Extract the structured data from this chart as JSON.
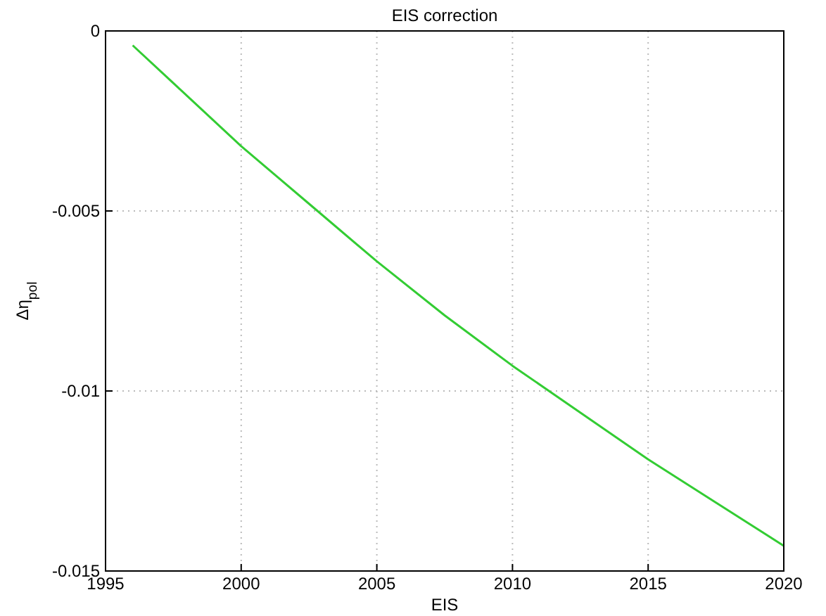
{
  "chart_data": {
    "type": "line",
    "title": "EIS correction",
    "xlabel": "EIS",
    "ylabel": "Δη$_{pol}$",
    "x": [
      1996,
      1998,
      2000,
      2002.5,
      2005,
      2007.5,
      2010,
      2012.5,
      2015,
      2017.5,
      2020
    ],
    "series": [
      {
        "color": "#33cc33",
        "values": [
          -0.0004,
          -0.0018,
          -0.0032,
          -0.0048,
          -0.0064,
          -0.0079,
          -0.0093,
          -0.0106,
          -0.0119,
          -0.0131,
          -0.0143
        ]
      }
    ],
    "xlim": [
      1995,
      2020
    ],
    "xticks": [
      1995,
      2000,
      2005,
      2010,
      2015,
      2020
    ],
    "ylim": [
      -0.015,
      0
    ],
    "yticks": [
      -0.015,
      -0.01,
      -0.005,
      0
    ],
    "grid": true,
    "line_style": "solid",
    "marker": "none"
  }
}
